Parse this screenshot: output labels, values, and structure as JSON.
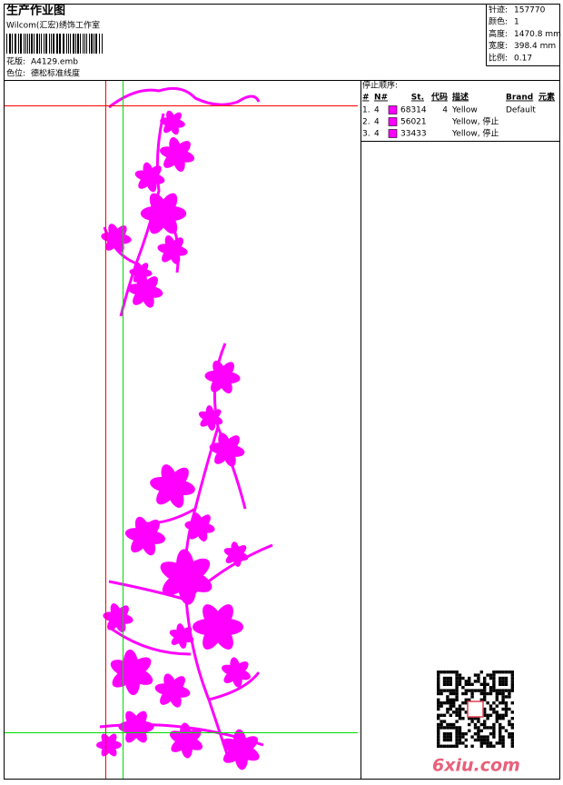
{
  "header": {
    "title": "生产作业图",
    "company": "Wilcom(汇宏)绣饰工作室",
    "design_label": "花版:",
    "design_file": "A4129.emb",
    "palette_label": "色位:",
    "palette": "德松标准线度"
  },
  "stats": [
    {
      "label": "针迹:",
      "value": "157770"
    },
    {
      "label": "颜色:",
      "value": "1"
    },
    {
      "label": "高度:",
      "value": "1470.8 mm"
    },
    {
      "label": "宽度:",
      "value": "398.4 mm"
    },
    {
      "label": "比例:",
      "value": "0.17"
    }
  ],
  "stop_sequence": {
    "title": "停止顺序:",
    "headers": {
      "num": "#",
      "needle": "N#",
      "stitches": "St.",
      "code": "代码",
      "description": "描述",
      "brand": "Brand",
      "element": "元素"
    },
    "rows": [
      {
        "num": "1.",
        "needle": "4",
        "stitches": "68314",
        "code": "4",
        "description": "Yellow",
        "brand": "Default"
      },
      {
        "num": "2.",
        "needle": "4",
        "stitches": "56021",
        "description": "Yellow, 停止"
      },
      {
        "num": "3.",
        "needle": "4",
        "stitches": "33433",
        "description": "Yellow, 停止"
      }
    ]
  },
  "watermark": "6xiu.com"
}
